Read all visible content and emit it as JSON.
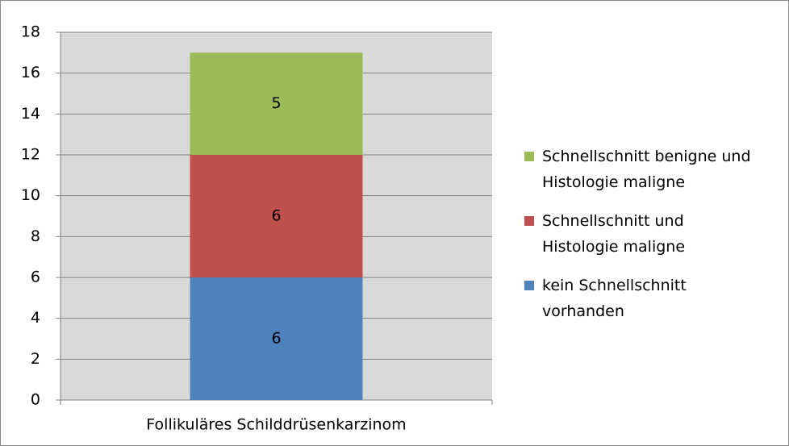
{
  "chart_data": {
    "type": "stacked_bar",
    "categories": [
      "Follikuläres Schilddrüsenkarzinom"
    ],
    "series": [
      {
        "name": "kein Schnellschnitt vorhanden",
        "color": "#4f81bd",
        "values": [
          6
        ]
      },
      {
        "name": "Schnellschnitt und Histologie maligne",
        "color": "#c0504d",
        "values": [
          6
        ]
      },
      {
        "name": "Schnellschnitt benigne und Histologie maligne",
        "color": "#9bbb59",
        "values": [
          5
        ]
      }
    ],
    "ylim": [
      0,
      18
    ],
    "yticks": [
      0,
      2,
      4,
      6,
      8,
      10,
      12,
      14,
      16,
      18
    ],
    "grid": true,
    "legend": "right"
  }
}
